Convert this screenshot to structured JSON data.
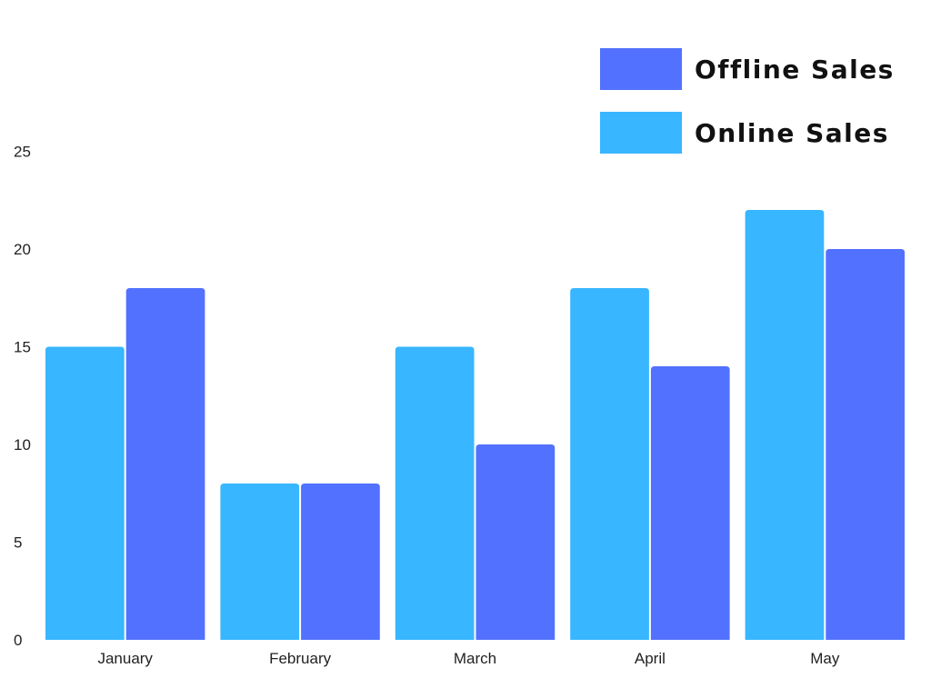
{
  "chart_data": {
    "type": "bar",
    "categories": [
      "January",
      "February",
      "March",
      "April",
      "May"
    ],
    "series": [
      {
        "name": "Online Sales",
        "color": "#38b6ff",
        "values": [
          15,
          8,
          15,
          18,
          22
        ]
      },
      {
        "name": "Offline Sales",
        "color": "#5271ff",
        "values": [
          18,
          8,
          10,
          14,
          20
        ]
      }
    ],
    "y_ticks": [
      0,
      5,
      10,
      15,
      20,
      25
    ],
    "ylim": [
      0,
      25
    ],
    "grid": false,
    "legend_position": "top-right",
    "title": "",
    "xlabel": "",
    "ylabel": ""
  },
  "legend": {
    "items": [
      {
        "label": "Offline Sales",
        "color": "#5271ff"
      },
      {
        "label": "Online Sales",
        "color": "#38b6ff"
      }
    ]
  }
}
